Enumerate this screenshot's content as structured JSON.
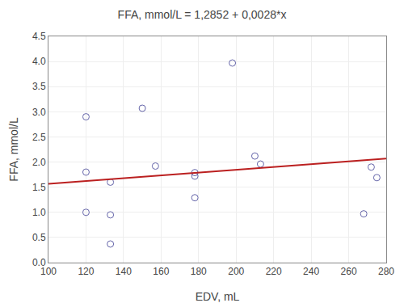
{
  "chart_data": {
    "type": "scatter",
    "title": "FFA, mmol/L = 1,2852 + 0,0028*x",
    "xlabel": "EDV, mL",
    "ylabel": "FFA, mmol/L",
    "xlim": [
      100,
      280
    ],
    "ylim": [
      0,
      4.5
    ],
    "xticks": [
      100,
      120,
      140,
      160,
      180,
      200,
      220,
      240,
      260,
      280
    ],
    "yticks": [
      {
        "value": 0,
        "label": "0.0"
      },
      0.5,
      {
        "value": 1,
        "label": "1.0"
      },
      1.5,
      {
        "value": 2,
        "label": "2.0"
      },
      2.5,
      {
        "value": 3,
        "label": "3.0"
      },
      3.5,
      {
        "value": 4,
        "label": "4.0"
      },
      4.5
    ],
    "grid": true,
    "series": [
      {
        "type": "scatter",
        "marker": "circle-open",
        "color": "#6666aa",
        "x": [
          120,
          120,
          120,
          133,
          133,
          133,
          150,
          157,
          178,
          178,
          178,
          198,
          210,
          213,
          268,
          272,
          275
        ],
        "values": [
          2.9,
          1.8,
          1.0,
          1.6,
          0.37,
          0.95,
          3.07,
          1.92,
          1.79,
          1.72,
          1.29,
          3.97,
          2.12,
          1.96,
          0.97,
          1.9,
          1.69
        ]
      },
      {
        "type": "line",
        "line_style": "solid",
        "color": "#bb2020",
        "x": [
          100,
          280
        ],
        "values": [
          1.5652,
          2.0692
        ]
      }
    ]
  }
}
